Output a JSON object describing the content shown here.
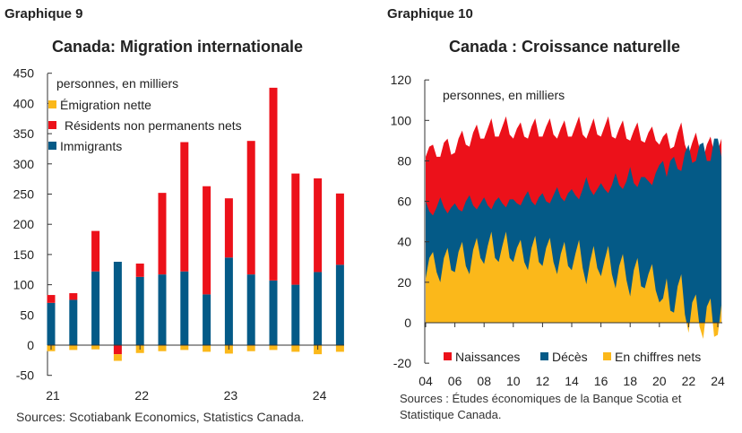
{
  "chart_data": [
    {
      "type": "bar",
      "stacked": true,
      "figure_label": "Graphique 9",
      "title": "Canada: Migration internationale",
      "unit_note": "personnes, en milliers",
      "source": "Sources: Scotiabank Economics, Statistics Canada.",
      "ylim": [
        -50,
        450
      ],
      "yticks": [
        "450",
        "400",
        "350",
        "300",
        "250",
        "200",
        "150",
        "100",
        "50",
        "0",
        "-50"
      ],
      "xtick_labels": [
        "21",
        "22",
        "23",
        "24"
      ],
      "categories": [
        "21T1",
        "21T2",
        "21T3",
        "21T4",
        "22T1",
        "22T2",
        "22T3",
        "22T4",
        "23T1",
        "23T2",
        "23T3",
        "23T4",
        "24T1",
        "24T2"
      ],
      "legend_position": "top-left",
      "series": [
        {
          "name": "Immigrants",
          "color": "#045a87",
          "values": [
            70,
            75,
            122,
            138,
            113,
            117,
            122,
            84,
            145,
            117,
            107,
            100,
            121,
            133
          ]
        },
        {
          "name": "Résidents non permanents nets",
          "color": "#ec111a",
          "values": [
            13,
            11,
            67,
            -15,
            22,
            135,
            214,
            179,
            98,
            221,
            319,
            184,
            155,
            118
          ]
        },
        {
          "name": "Émigration nette",
          "color": "#fbb81a",
          "values": [
            -10,
            -8,
            -7,
            -11,
            -13,
            -10,
            -8,
            -11,
            -14,
            -10,
            -8,
            -11,
            -15,
            -11
          ]
        }
      ],
      "legend_order": [
        "Émigration nette",
        "Résidents non permanents nets",
        "Immigrants"
      ]
    },
    {
      "type": "area",
      "figure_label": "Graphique 10",
      "title": "Canada : Croissance naturelle",
      "unit_note": "personnes, en milliers",
      "source_lines": [
        "Sources : Études économiques de la Banque Scotia et",
        "Statistique Canada."
      ],
      "ylim": [
        -20,
        120
      ],
      "yticks": [
        "120",
        "100",
        "80",
        "60",
        "40",
        "20",
        "0",
        "-20"
      ],
      "xtick_labels": [
        "04",
        "06",
        "08",
        "10",
        "12",
        "14",
        "16",
        "18",
        "20",
        "22",
        "24"
      ],
      "x_start": "2004T1",
      "frequency": "quarterly",
      "legend_position": "bottom",
      "series": [
        {
          "name": "Naissances",
          "color": "#ec111a",
          "values": [
            82,
            87,
            88,
            82,
            82,
            89,
            91,
            83,
            84,
            91,
            95,
            88,
            87,
            94,
            98,
            91,
            91,
            96,
            101,
            92,
            92,
            97,
            102,
            93,
            91,
            96,
            99,
            92,
            91,
            97,
            101,
            92,
            92,
            97,
            101,
            93,
            91,
            96,
            100,
            92,
            92,
            97,
            102,
            93,
            91,
            96,
            101,
            93,
            92,
            97,
            102,
            92,
            91,
            96,
            100,
            91,
            90,
            95,
            99,
            90,
            89,
            94,
            97,
            90,
            88,
            92,
            94,
            86,
            87,
            94,
            99,
            88,
            83,
            89,
            94,
            86,
            81,
            88,
            92,
            84,
            85,
            91
          ]
        },
        {
          "name": "Décès",
          "color": "#045a87",
          "values": [
            60,
            55,
            53,
            57,
            62,
            57,
            54,
            57,
            59,
            56,
            55,
            60,
            63,
            58,
            56,
            59,
            62,
            58,
            56,
            60,
            62,
            59,
            57,
            61,
            61,
            59,
            58,
            62,
            65,
            60,
            58,
            62,
            64,
            60,
            59,
            63,
            67,
            62,
            60,
            64,
            66,
            63,
            61,
            66,
            72,
            66,
            63,
            66,
            69,
            66,
            64,
            68,
            74,
            68,
            66,
            70,
            77,
            69,
            67,
            72,
            72,
            70,
            68,
            74,
            78,
            80,
            72,
            80,
            82,
            76,
            75,
            84,
            88,
            79,
            80,
            88,
            89,
            80,
            80,
            91,
            91,
            82
          ]
        },
        {
          "name": "En chiffres nets",
          "color": "#fbb81a",
          "derived": "Naissances - Décès"
        }
      ]
    }
  ]
}
